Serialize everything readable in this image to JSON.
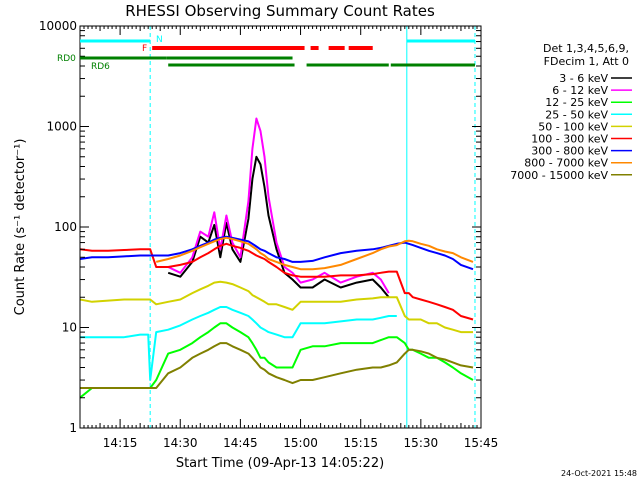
{
  "chart_data": {
    "type": "line",
    "title": "RHESSI Observing Summary Count Rates",
    "xlabel": "Start Time (09-Apr-13 14:05:22)",
    "ylabel": "Count Rate (s⁻¹ detector⁻¹)",
    "yscale": "log",
    "ylim": [
      1,
      10000
    ],
    "xlim_minutes": [
      5,
      105
    ],
    "x_tick_minutes": [
      15,
      30,
      45,
      60,
      75,
      90,
      105
    ],
    "x_tick_labels": [
      "14:15",
      "14:30",
      "14:45",
      "15:00",
      "15:15",
      "15:30",
      "15:45"
    ],
    "y_ticks": [
      1,
      10,
      100,
      1000,
      10000
    ],
    "y_tick_labels": [
      "1",
      "10",
      "100",
      "1000",
      "10000"
    ],
    "legend_header": [
      "Det 1,3,4,5,6,9,",
      "FDecim 1, Att 0"
    ],
    "legend_position": "right",
    "timestamp": "24-Oct-2021 15:48",
    "annotations": {
      "night": {
        "label": "N",
        "color": "#00ffff",
        "intervals": [
          [
            5,
            22.5
          ],
          [
            86.5,
            103.5
          ]
        ]
      },
      "flare": {
        "label": "F",
        "color": "#ff0000",
        "intervals": [
          [
            23,
            61
          ],
          [
            62.5,
            64.5
          ],
          [
            67,
            71
          ],
          [
            72,
            78
          ]
        ]
      },
      "rd0": {
        "label": "RD0",
        "color": "#008000",
        "intervals": [
          [
            5,
            26.5
          ],
          [
            26.5,
            58
          ]
        ]
      },
      "rd6": {
        "label": "RD6",
        "color": "#008000",
        "intervals": [
          [
            27,
            58.5
          ],
          [
            61.5,
            82
          ],
          [
            82.5,
            103.5
          ]
        ]
      }
    },
    "x": [
      5,
      8,
      12,
      16,
      20,
      22,
      22.5,
      24,
      27,
      30,
      33,
      35,
      37,
      38.5,
      40,
      41.5,
      43,
      45,
      47,
      48,
      49,
      50,
      51,
      52,
      54,
      56,
      58,
      60,
      63,
      66,
      70,
      74,
      78,
      80,
      82,
      84,
      86,
      87,
      88,
      90,
      92,
      94,
      96,
      98,
      100,
      103
    ],
    "series": [
      {
        "name": "3 - 6 keV",
        "color": "#000000",
        "values": [
          null,
          null,
          null,
          null,
          null,
          null,
          null,
          null,
          35,
          32,
          45,
          80,
          70,
          105,
          50,
          110,
          60,
          45,
          120,
          300,
          500,
          420,
          250,
          130,
          60,
          35,
          30,
          25,
          25,
          30,
          25,
          28,
          30,
          25,
          20,
          null,
          null,
          null,
          null,
          null,
          null,
          null,
          null,
          null,
          null,
          null
        ]
      },
      {
        "name": "6 - 12 keV",
        "color": "#ff00ff",
        "values": [
          null,
          null,
          null,
          null,
          null,
          null,
          null,
          null,
          40,
          35,
          50,
          90,
          80,
          140,
          60,
          130,
          70,
          50,
          180,
          600,
          1200,
          900,
          500,
          200,
          70,
          40,
          35,
          28,
          30,
          35,
          28,
          32,
          35,
          30,
          22,
          null,
          null,
          null,
          null,
          null,
          null,
          null,
          null,
          null,
          null,
          null
        ]
      },
      {
        "name": "12 - 25 keV",
        "color": "#00ff00",
        "values": [
          2,
          2.5,
          2.5,
          2.5,
          2.5,
          2.5,
          2.5,
          3,
          5.5,
          6,
          7,
          8,
          9,
          10,
          11,
          11,
          10,
          9,
          8,
          7,
          6,
          5,
          5,
          4.5,
          4,
          4,
          4,
          6,
          6.5,
          6.5,
          7,
          7,
          7,
          7.5,
          8,
          8,
          7,
          6,
          6,
          5.5,
          5,
          5,
          4.5,
          4,
          3.5,
          3
        ]
      },
      {
        "name": "25 - 50 keV",
        "color": "#00ffff",
        "values": [
          8,
          8,
          8,
          8,
          8.5,
          8.5,
          3,
          9,
          9.5,
          10.5,
          12,
          13,
          14,
          15,
          16,
          16,
          15,
          14,
          13,
          12,
          11,
          10,
          9.5,
          9,
          8.5,
          8,
          8,
          11,
          11,
          11,
          11.5,
          12,
          12,
          12.5,
          13,
          13,
          null,
          null,
          null,
          null,
          null,
          null,
          null,
          null,
          null,
          null
        ]
      },
      {
        "name": "50 - 100 keV",
        "color": "#d2d200",
        "values": [
          19,
          18,
          18.5,
          19,
          19,
          19,
          19,
          17,
          18,
          19,
          22,
          24,
          26,
          28,
          28.5,
          28,
          27,
          25,
          23,
          21,
          20,
          19,
          18,
          17,
          17,
          16,
          15,
          18,
          18,
          18,
          18,
          19,
          19.5,
          20,
          20,
          20,
          13,
          12,
          12,
          12,
          11,
          11,
          10,
          9.5,
          9,
          9
        ]
      },
      {
        "name": "100 - 300 keV",
        "color": "#ff0000",
        "values": [
          60,
          58,
          58,
          59,
          60,
          60,
          60,
          40,
          40,
          42,
          45,
          50,
          55,
          60,
          65,
          68,
          65,
          62,
          58,
          55,
          52,
          50,
          48,
          45,
          40,
          35,
          33,
          32,
          32,
          32,
          33,
          33,
          34,
          35,
          36,
          36,
          22,
          22,
          20,
          19,
          18,
          17,
          16,
          15,
          13,
          12
        ]
      },
      {
        "name": "300 - 800 keV",
        "color": "#0000ff",
        "values": [
          48,
          50,
          50,
          51,
          52,
          52,
          52,
          52,
          52,
          55,
          60,
          65,
          70,
          75,
          78,
          80,
          78,
          75,
          72,
          68,
          64,
          60,
          58,
          55,
          50,
          48,
          45,
          45,
          46,
          50,
          55,
          58,
          60,
          62,
          65,
          68,
          70,
          68,
          66,
          62,
          58,
          55,
          52,
          48,
          42,
          38
        ]
      },
      {
        "name": "800 - 7000 keV",
        "color": "#ff8800",
        "values": [
          null,
          null,
          null,
          null,
          null,
          null,
          null,
          45,
          48,
          52,
          58,
          63,
          68,
          72,
          76,
          78,
          76,
          72,
          68,
          64,
          60,
          55,
          52,
          48,
          45,
          42,
          40,
          38,
          38,
          39,
          42,
          48,
          55,
          60,
          64,
          66,
          72,
          73,
          72,
          68,
          65,
          60,
          57,
          55,
          50,
          45
        ]
      },
      {
        "name": "7000 - 15000 keV",
        "color": "#808000",
        "values": [
          2.5,
          2.5,
          2.5,
          2.5,
          2.5,
          2.5,
          2.5,
          2.5,
          3.5,
          4,
          5,
          5.5,
          6,
          6.5,
          7,
          7,
          6.5,
          6,
          5.5,
          5,
          4.5,
          4,
          3.8,
          3.5,
          3.2,
          3,
          2.8,
          3,
          3,
          3.2,
          3.5,
          3.8,
          4,
          4,
          4.2,
          4.5,
          5.5,
          6,
          6,
          5.8,
          5.5,
          5,
          4.8,
          4.5,
          4.2,
          4
        ]
      }
    ]
  }
}
